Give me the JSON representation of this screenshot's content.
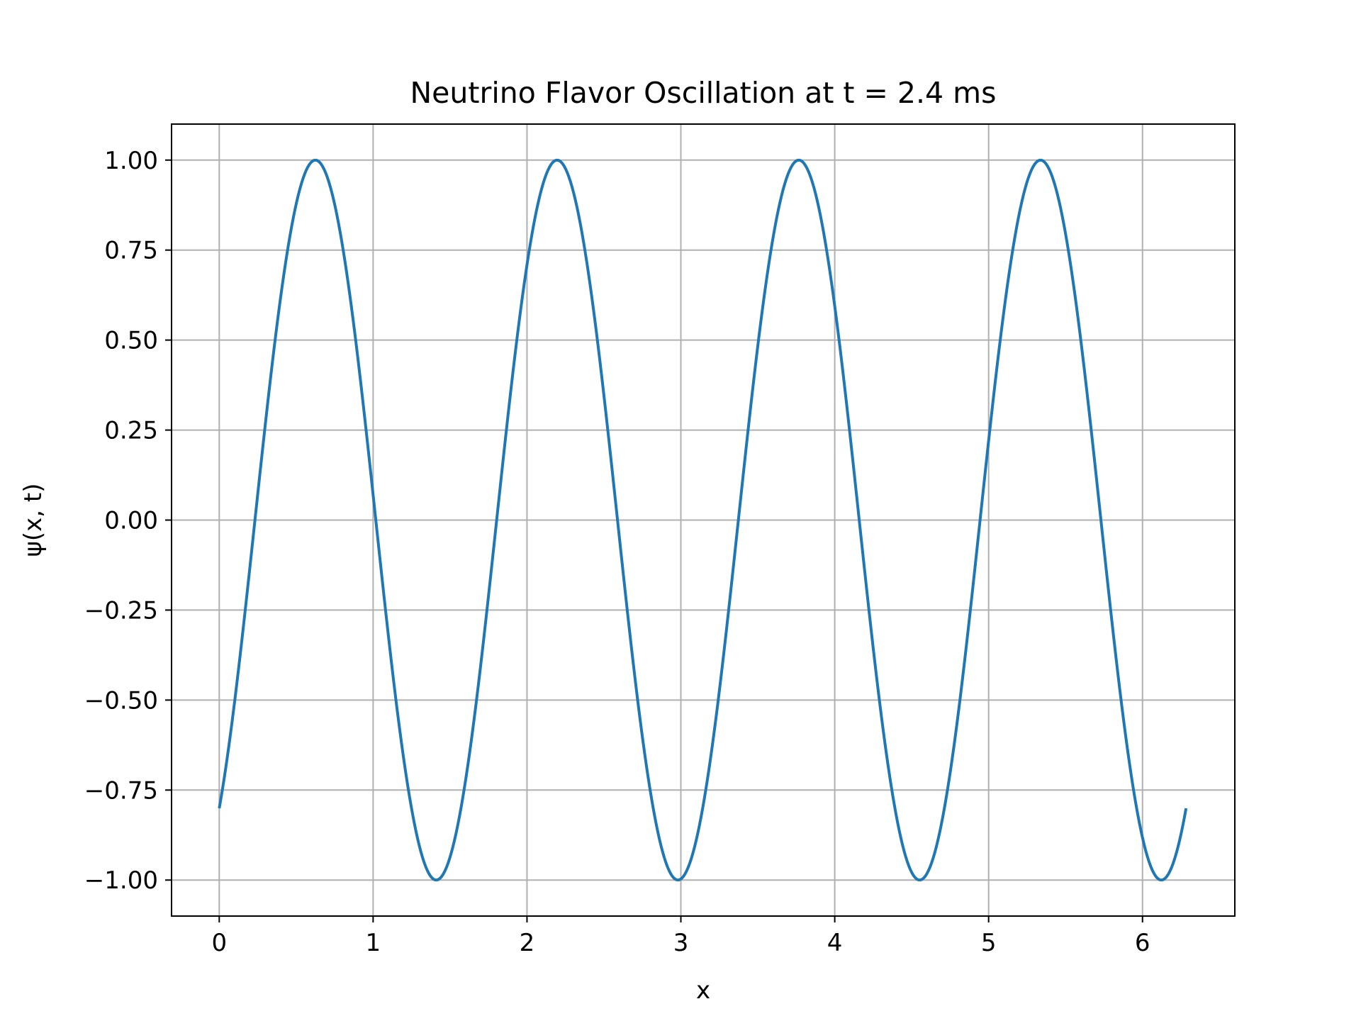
{
  "chart_data": {
    "type": "line",
    "title": "Neutrino Flavor Oscillation at t = 2.4 ms",
    "xlabel": "x",
    "ylabel": "ψ(x, t)",
    "xlim": [
      -0.31,
      6.6
    ],
    "ylim": [
      -1.1,
      1.1
    ],
    "xticks": [
      0,
      1,
      2,
      3,
      4,
      5,
      6
    ],
    "xtick_labels": [
      "0",
      "1",
      "2",
      "3",
      "4",
      "5",
      "6"
    ],
    "yticks": [
      1.0,
      0.75,
      0.5,
      0.25,
      0.0,
      -0.25,
      -0.5,
      -0.75,
      -1.0
    ],
    "ytick_labels": [
      "1.00",
      "0.75",
      "0.50",
      "0.25",
      "0.00",
      "−0.25",
      "−0.50",
      "−0.75",
      "−1.00"
    ],
    "grid": true,
    "series": [
      {
        "color": "#1f77b4",
        "function": "sin(4x - 0.9283)",
        "x_range": [
          0,
          6.2832
        ]
      }
    ]
  }
}
